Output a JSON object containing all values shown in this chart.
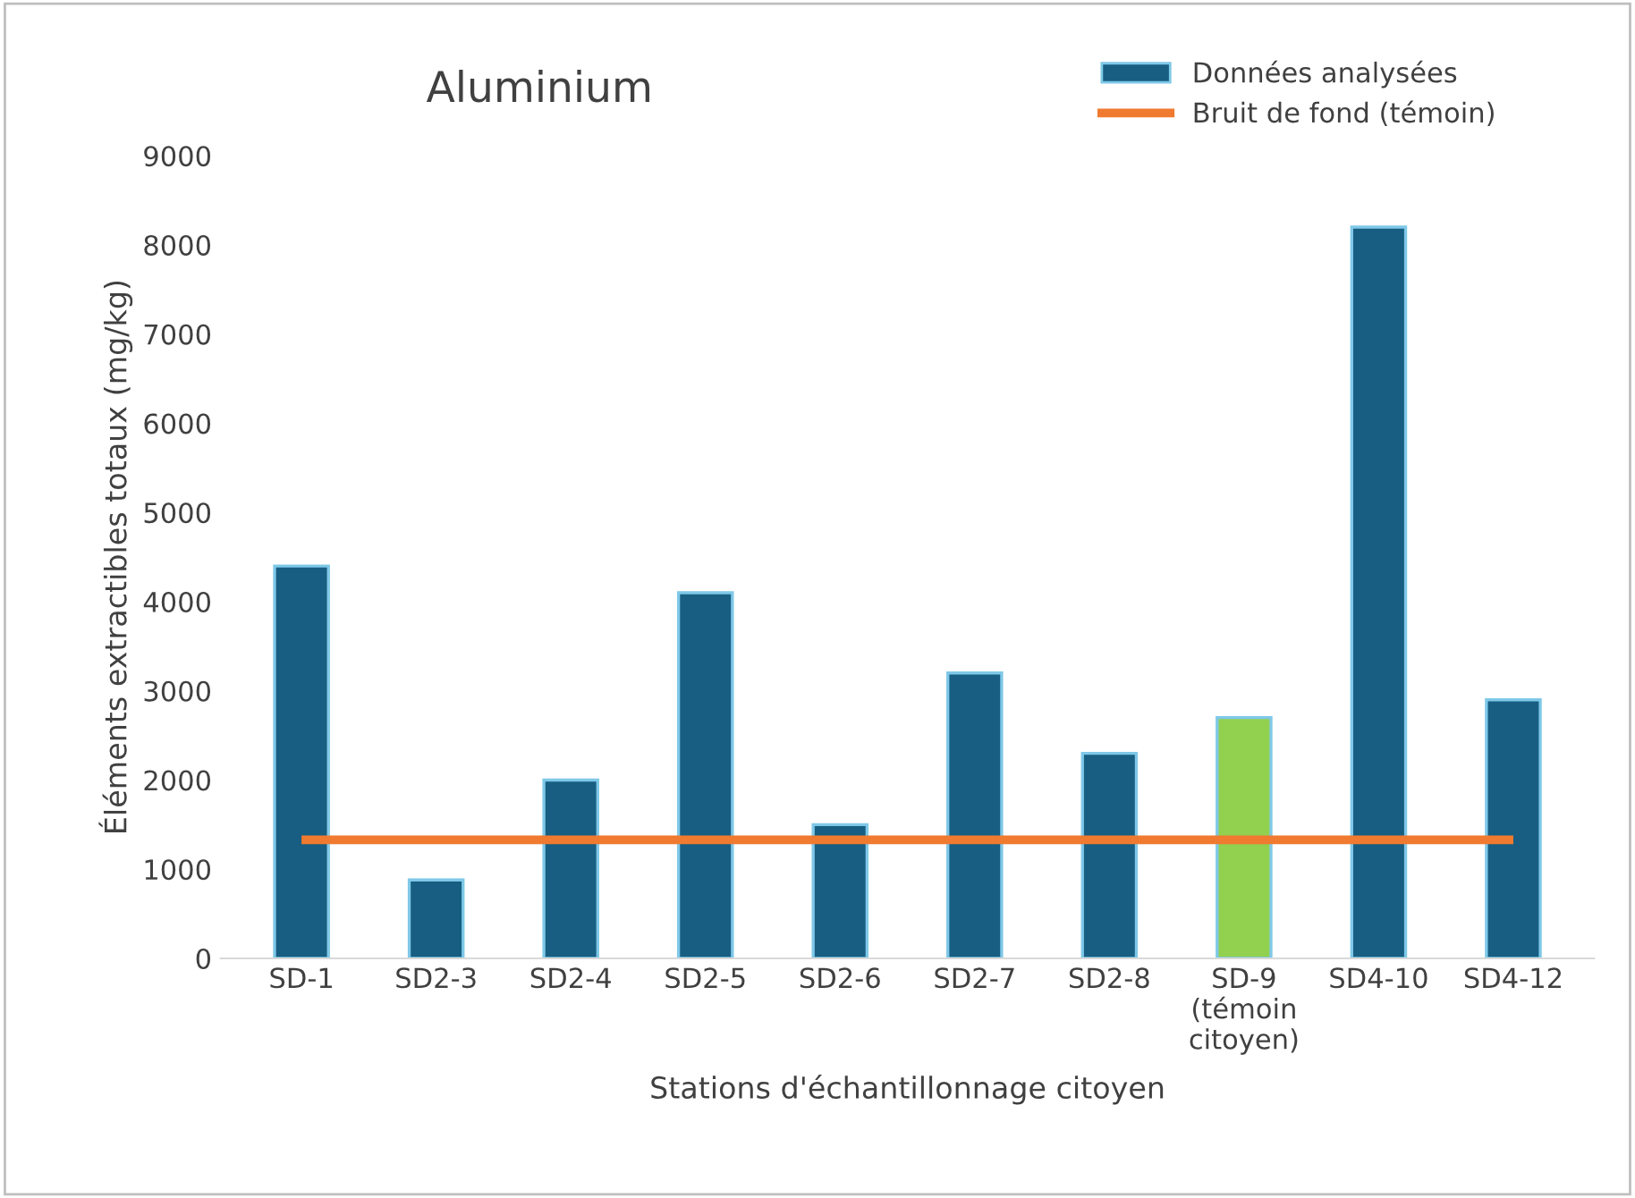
{
  "chart_data": {
    "type": "bar",
    "title": "Aluminium",
    "xlabel": "Stations d'échantillonnage citoyen",
    "ylabel": "Éléments extractibles totaux (mg/kg)",
    "categories": [
      "SD-1",
      "SD2-3",
      "SD2-4",
      "SD2-5",
      "SD2-6",
      "SD2-7",
      "SD2-8",
      "SD-9\n(témoin\ncitoyen)",
      "SD4-10",
      "SD4-12"
    ],
    "series": [
      {
        "name": "Données analysées",
        "color": "#175e82",
        "colors": [
          "#175e82",
          "#175e82",
          "#175e82",
          "#175e82",
          "#175e82",
          "#175e82",
          "#175e82",
          "#92d050",
          "#175e82",
          "#175e82"
        ],
        "values": [
          4400,
          880,
          2000,
          4100,
          1500,
          3200,
          2300,
          2700,
          8200,
          2900
        ]
      },
      {
        "name": "Bruit de fond (témoin)",
        "type": "line",
        "color": "#f07a30",
        "values": [
          1330,
          1330,
          1330,
          1330,
          1330,
          1330,
          1330,
          1330,
          1330,
          1330
        ]
      }
    ],
    "ylim": [
      0,
      9000
    ],
    "yticks": [
      0,
      1000,
      2000,
      3000,
      4000,
      5000,
      6000,
      7000,
      8000,
      9000
    ],
    "grid": false,
    "legend": "top right"
  }
}
